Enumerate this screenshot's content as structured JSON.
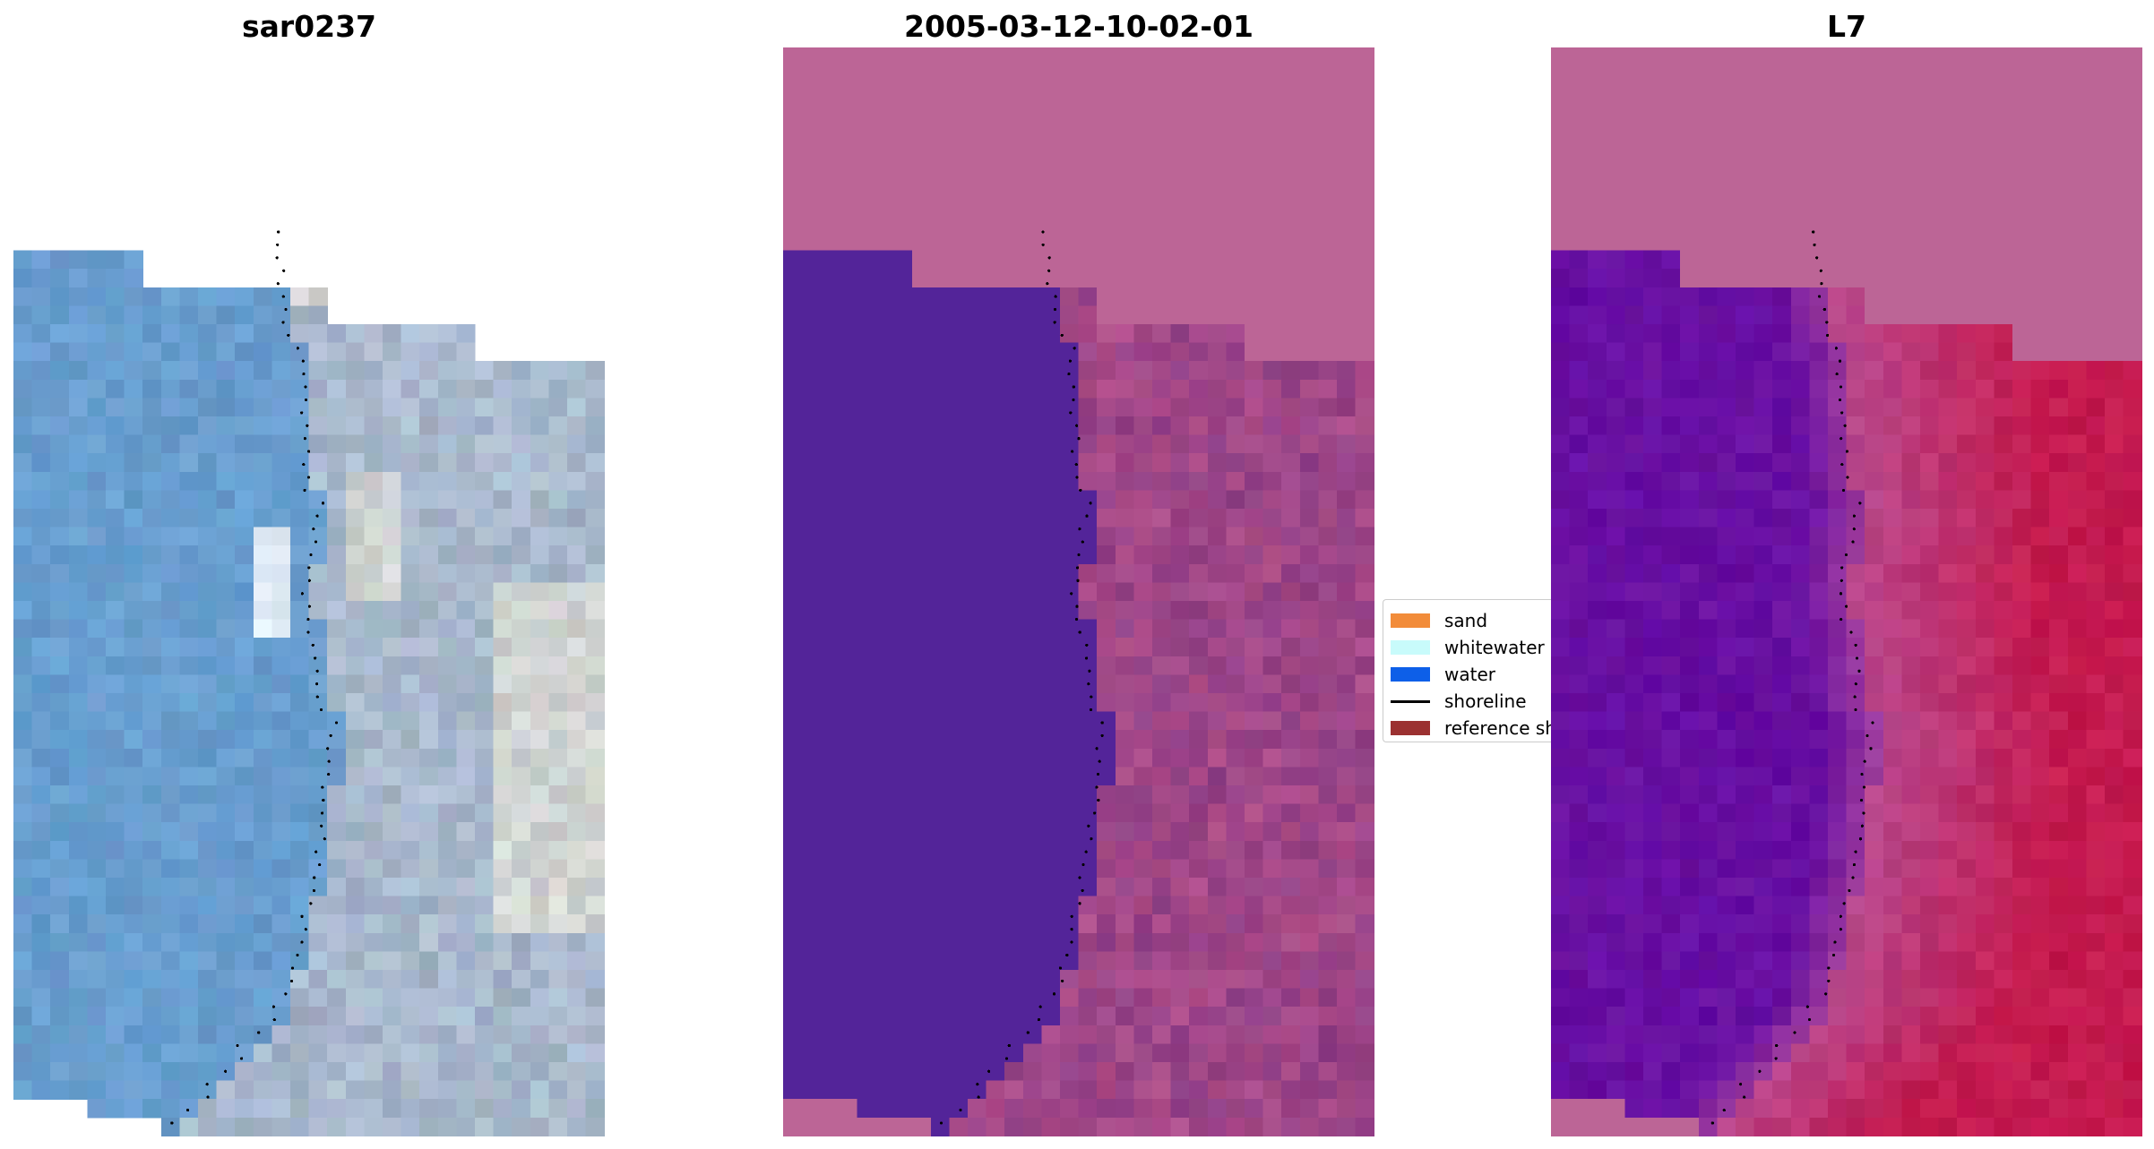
{
  "panels": [
    {
      "title": "sar0237"
    },
    {
      "title": "2005-03-12-10-02-01"
    },
    {
      "title": "L7"
    }
  ],
  "legend": {
    "items": [
      {
        "label": "sand",
        "color": "#f28c3a",
        "kind": "patch"
      },
      {
        "label": "whitewater",
        "color": "#c8fbfb",
        "kind": "patch"
      },
      {
        "label": "water",
        "color": "#0d5fe8",
        "kind": "patch"
      },
      {
        "label": "shoreline",
        "color": "#000000",
        "kind": "line"
      },
      {
        "label": "reference shoreline",
        "color": "#9b3131",
        "kind": "patch"
      }
    ]
  },
  "colors": {
    "land_overlay": "#bc6596",
    "water_class": "#532499",
    "rgb_water": "#6c9bcd",
    "ndwi_water": "#6a119f",
    "ndwi_land": "#c41a4f"
  }
}
